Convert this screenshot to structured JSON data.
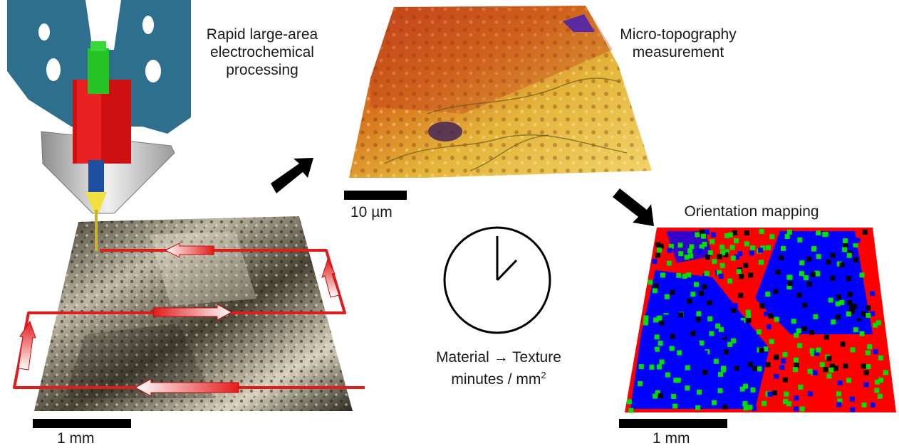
{
  "captions": {
    "processing": [
      "Rapid large-area",
      "electrochemical",
      "processing"
    ],
    "topography": [
      "Micro-topography",
      "measurement"
    ],
    "orientation": "Orientation mapping",
    "material_texture": "Material → Texture",
    "rate_prefix": "minutes / mm",
    "rate_superscript": "2"
  },
  "scale_bars": {
    "left": "1 mm",
    "topography": "10 µm",
    "orientation": "1 mm"
  },
  "icons": [
    "nozzle-icon",
    "clock-icon",
    "arrow-icon"
  ],
  "colors": {
    "scan_path": "#e21b1b",
    "housing": "#2f6f8e",
    "orientation_red": "#ff0000",
    "orientation_blue": "#0000ff",
    "orientation_green": "#00e000"
  }
}
